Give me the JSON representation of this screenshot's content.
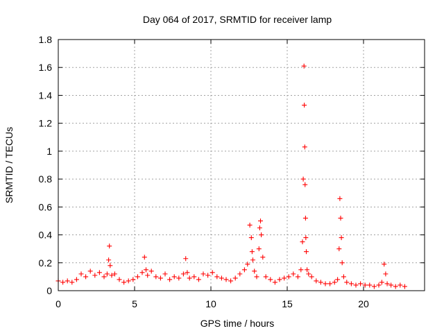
{
  "chart_data": {
    "type": "scatter",
    "title": "Day 064 of 2017, SRMTID for receiver lamp",
    "xlabel": "GPS time / hours",
    "ylabel": "SRMTID / TECUs",
    "xlim": [
      0,
      24
    ],
    "ylim": [
      0,
      1.8
    ],
    "xticks": [
      "0",
      "5",
      "10",
      "15",
      "20"
    ],
    "yticks": [
      "0",
      "0.2",
      "0.4",
      "0.6",
      "0.8",
      "1",
      "1.2",
      "1.4",
      "1.6",
      "1.8"
    ],
    "grid": true,
    "marker": "plus",
    "color": "#ff0000",
    "series": [
      {
        "name": "SRMTID",
        "x": [
          0.0,
          0.3,
          0.6,
          0.9,
          1.2,
          1.5,
          1.8,
          2.1,
          2.4,
          2.7,
          3.0,
          3.2,
          3.3,
          3.35,
          3.4,
          3.5,
          3.7,
          4.0,
          4.3,
          4.6,
          4.9,
          5.2,
          5.5,
          5.65,
          5.75,
          5.85,
          6.1,
          6.4,
          6.7,
          7.0,
          7.3,
          7.6,
          7.9,
          8.2,
          8.35,
          8.45,
          8.6,
          8.9,
          9.2,
          9.5,
          9.8,
          10.1,
          10.4,
          10.7,
          11.0,
          11.3,
          11.6,
          11.9,
          12.2,
          12.4,
          12.55,
          12.65,
          12.7,
          12.75,
          12.85,
          13.0,
          13.15,
          13.2,
          13.25,
          13.3,
          13.4,
          13.6,
          13.9,
          14.2,
          14.5,
          14.8,
          15.1,
          15.4,
          15.7,
          15.9,
          16.0,
          16.05,
          16.1,
          16.12,
          16.15,
          16.17,
          16.2,
          16.22,
          16.25,
          16.3,
          16.4,
          16.6,
          16.9,
          17.2,
          17.5,
          17.8,
          18.1,
          18.3,
          18.4,
          18.45,
          18.5,
          18.55,
          18.6,
          18.7,
          18.9,
          19.2,
          19.5,
          19.8,
          20.1,
          20.4,
          20.7,
          21.0,
          21.2,
          21.35,
          21.45,
          21.55,
          21.8,
          22.1,
          22.4,
          22.7
        ],
        "y": [
          0.07,
          0.06,
          0.07,
          0.06,
          0.08,
          0.12,
          0.1,
          0.14,
          0.11,
          0.13,
          0.1,
          0.12,
          0.22,
          0.32,
          0.18,
          0.11,
          0.12,
          0.08,
          0.06,
          0.07,
          0.08,
          0.1,
          0.13,
          0.24,
          0.15,
          0.11,
          0.14,
          0.1,
          0.09,
          0.12,
          0.08,
          0.1,
          0.09,
          0.12,
          0.23,
          0.13,
          0.09,
          0.1,
          0.08,
          0.12,
          0.11,
          0.13,
          0.1,
          0.09,
          0.08,
          0.07,
          0.09,
          0.12,
          0.15,
          0.19,
          0.47,
          0.38,
          0.28,
          0.22,
          0.14,
          0.1,
          0.3,
          0.45,
          0.5,
          0.4,
          0.24,
          0.1,
          0.08,
          0.06,
          0.08,
          0.09,
          0.1,
          0.12,
          0.1,
          0.15,
          0.35,
          0.8,
          1.61,
          1.33,
          1.03,
          0.76,
          0.52,
          0.38,
          0.28,
          0.15,
          0.12,
          0.1,
          0.07,
          0.06,
          0.05,
          0.05,
          0.06,
          0.08,
          0.3,
          0.66,
          0.52,
          0.38,
          0.2,
          0.1,
          0.06,
          0.05,
          0.04,
          0.05,
          0.04,
          0.04,
          0.03,
          0.04,
          0.06,
          0.19,
          0.12,
          0.05,
          0.04,
          0.03,
          0.04,
          0.03
        ]
      }
    ]
  }
}
